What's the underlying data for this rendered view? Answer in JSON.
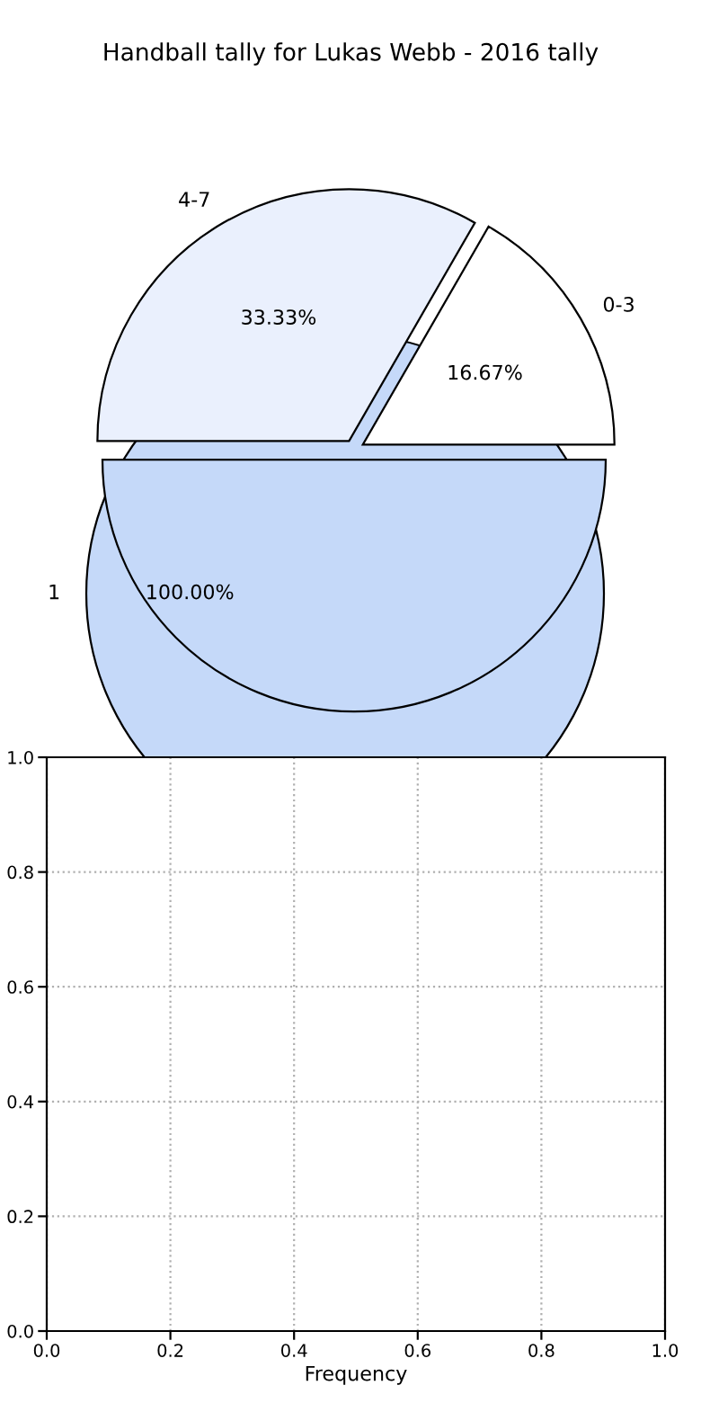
{
  "chart_data": [
    {
      "type": "pie",
      "title": "Handball tally for Lukas Webb - 2016 tally",
      "categories": [
        "0-3",
        "4-7",
        null
      ],
      "values": [
        16.67,
        33.33,
        50
      ],
      "colors": [
        "#ffffff",
        "#eaf0fd",
        "#c5d9f9"
      ],
      "value_labels": [
        "16.67%",
        "33.33%",
        null
      ]
    },
    {
      "type": "pie",
      "categories": [
        "1"
      ],
      "values": [
        100
      ],
      "colors": [
        "#c5d9f9"
      ],
      "value_labels": [
        "100.00%"
      ]
    },
    {
      "type": "scatter",
      "xlim": [
        0,
        1
      ],
      "ylim": [
        0,
        1
      ],
      "xticks": [
        {
          "value": 0,
          "label": "0.0"
        },
        0.2,
        0.4,
        0.6,
        0.8,
        {
          "value": 1,
          "label": "1.0"
        }
      ],
      "yticks": [
        {
          "value": 0,
          "label": "0.0"
        },
        0.2,
        0.4,
        0.6,
        0.8,
        {
          "value": 1,
          "label": "1.0"
        }
      ],
      "xlabel": "Frequency",
      "grid": true
    }
  ]
}
